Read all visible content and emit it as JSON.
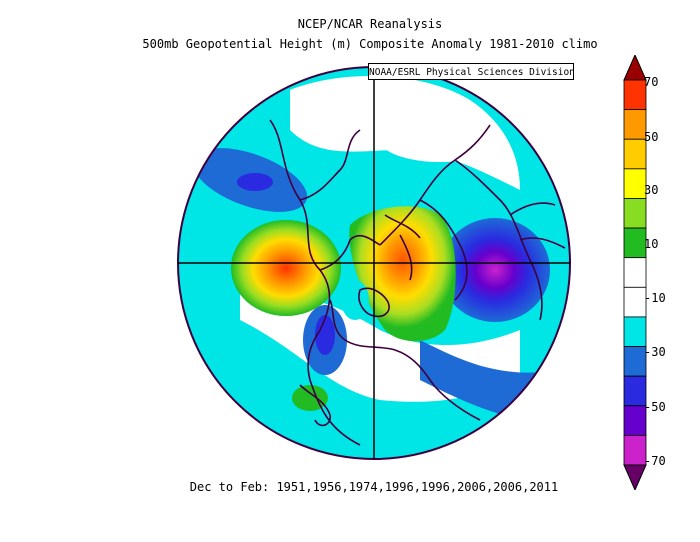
{
  "title": {
    "line1": "NCEP/NCAR Reanalysis",
    "line2": "500mb Geopotential Height (m) Composite Anomaly 1981-2010 climo"
  },
  "credit": "NOAA/ESRL Physical Sciences Division",
  "footer": "Dec to Feb: 1951,1956,1974,1996,1996,2006,2006,2011",
  "colorbar": {
    "labels": [
      "70",
      "50",
      "30",
      "10",
      "-10",
      "-30",
      "-50",
      "-70"
    ],
    "colors": [
      "#9a0000",
      "#ff3300",
      "#ff9900",
      "#ffcc00",
      "#ffff00",
      "#88dd22",
      "#22bb22",
      "#ffffff",
      "#ffffff",
      "#00e5e5",
      "#1e6bd6",
      "#2a2ae0",
      "#6600cc",
      "#cc22cc",
      "#660066"
    ]
  },
  "map": {
    "projection": "north-polar-stereographic",
    "ocean_color": "#00e5e5",
    "neutral_color": "#ffffff",
    "land_line_color": "#3d0040"
  }
}
